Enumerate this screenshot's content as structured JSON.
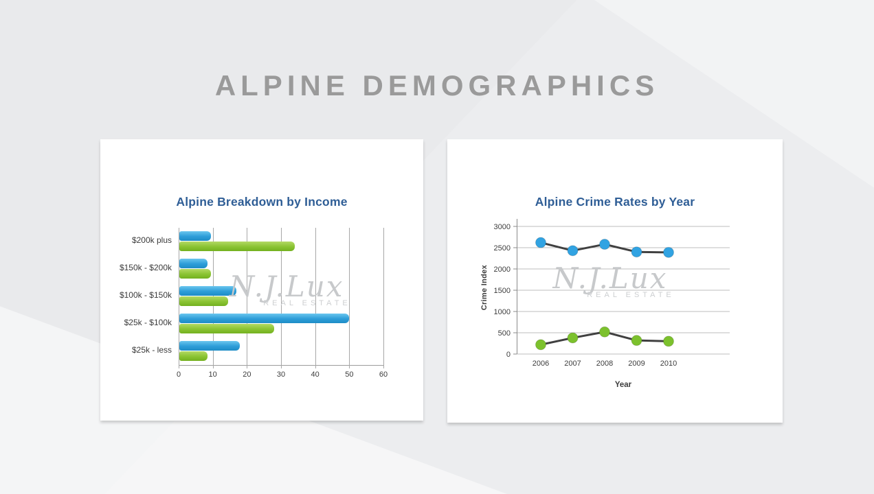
{
  "page": {
    "title": "ALPINE DEMOGRAPHICS"
  },
  "watermark": {
    "line1": "N.J.Lux",
    "line2": "REAL ESTATE"
  },
  "chart_data": [
    {
      "type": "bar",
      "orientation": "horizontal",
      "title": "Alpine Breakdown by Income",
      "categories": [
        "$200k plus",
        "$150k - $200k",
        "$100k - $150k",
        "$25k - $100k",
        "$25k - less"
      ],
      "series": [
        {
          "name": "blue",
          "color": "#2d9dd8",
          "values": [
            9.5,
            8.5,
            17,
            50,
            18
          ]
        },
        {
          "name": "green",
          "color": "#8ac332",
          "values": [
            34,
            9.5,
            14.5,
            28,
            8.5
          ]
        }
      ],
      "xlabel": "",
      "ylabel": "",
      "xlim": [
        0,
        60
      ],
      "xticks": [
        0,
        10,
        20,
        30,
        40,
        50,
        60
      ],
      "grid": true,
      "legend": false
    },
    {
      "type": "line",
      "title": "Alpine Crime Rates by Year",
      "x": [
        2006,
        2007,
        2008,
        2009,
        2010
      ],
      "series": [
        {
          "name": "blue",
          "point_color": "#31a3e2",
          "values": [
            2620,
            2430,
            2580,
            2400,
            2390
          ]
        },
        {
          "name": "green",
          "point_color": "#7cc12d",
          "values": [
            220,
            380,
            520,
            320,
            300
          ]
        }
      ],
      "line_color": "#404040",
      "xlabel": "Year",
      "ylabel": "Crime Index",
      "ylim": [
        0,
        3000
      ],
      "yticks": [
        0,
        500,
        1000,
        1500,
        2000,
        2500,
        3000
      ],
      "grid": true,
      "legend": false
    }
  ]
}
